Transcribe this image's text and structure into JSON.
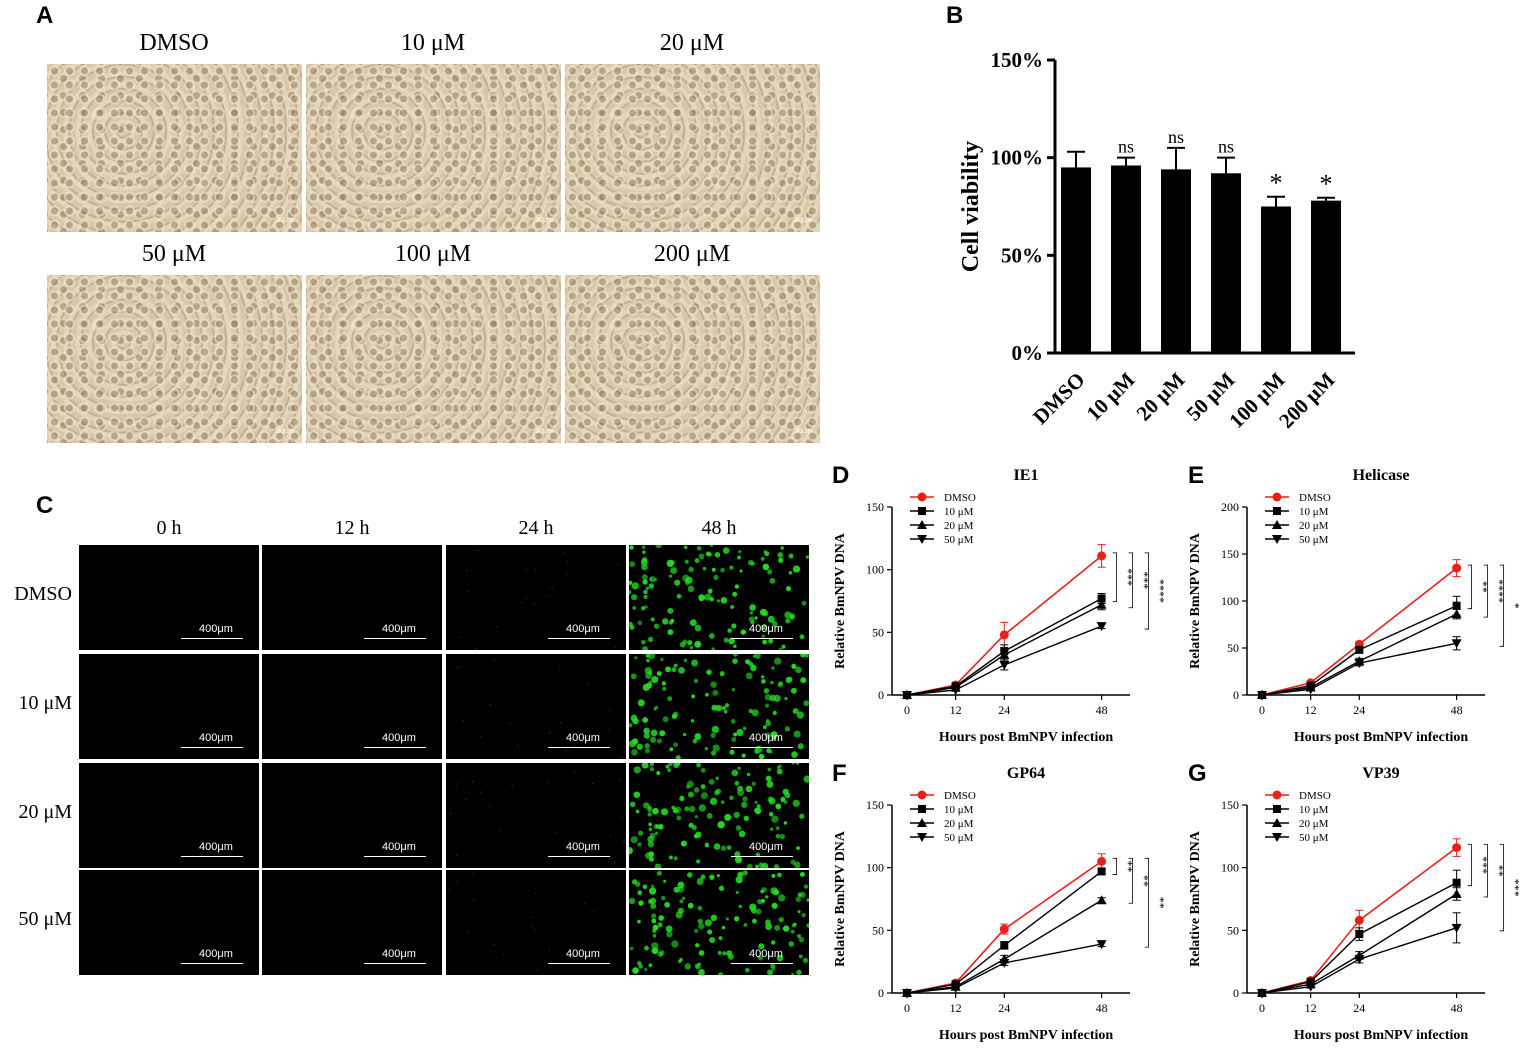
{
  "panel_A": {
    "letter": "A",
    "labels": [
      "DMSO",
      "10 μM",
      "20 μM",
      "50 μM",
      "100 μM",
      "200 μM"
    ],
    "scale_text": "30μm"
  },
  "panel_C": {
    "letter": "C",
    "time_labels": [
      "0 h",
      "12 h",
      "24 h",
      "48 h"
    ],
    "row_labels": [
      "DMSO",
      "10 μM",
      "20 μM",
      "50 μM"
    ],
    "scale_text": "400μm",
    "fluorescence_color": "#22dd22"
  },
  "colors": {
    "dmso_red": "#e8201a",
    "black": "#000000"
  },
  "chart_data": [
    {
      "panel": "B",
      "type": "bar",
      "ylabel": "Cell viability",
      "categories": [
        "DMSO",
        "10 μM",
        "20 μM",
        "50 μM",
        "100 μM",
        "200 μM"
      ],
      "values": [
        95,
        96,
        94,
        92,
        75,
        78
      ],
      "errors": [
        8,
        4,
        11,
        8,
        5,
        1.5
      ],
      "significance": [
        "",
        "ns",
        "ns",
        "ns",
        "*",
        "*"
      ],
      "yticks": [
        "0%",
        "50%",
        "100%",
        "150%"
      ],
      "ylim": [
        0,
        150
      ]
    },
    {
      "panel": "D",
      "type": "line",
      "title": "IE1",
      "xlabel": "Hours post BmNPV infection",
      "ylabel": "Relative BmNPV DNA",
      "x": [
        0,
        12,
        24,
        48
      ],
      "xticks": [
        "0",
        "12",
        "24",
        "48"
      ],
      "yticks": [
        "0",
        "50",
        "100",
        "150"
      ],
      "ylim": [
        0,
        150
      ],
      "series": [
        {
          "name": "DMSO",
          "values": [
            0,
            8,
            48,
            111
          ],
          "errors": [
            0,
            1,
            10,
            9
          ]
        },
        {
          "name": "10 μM",
          "values": [
            0,
            7,
            35,
            77
          ],
          "errors": [
            0,
            1,
            5,
            4
          ]
        },
        {
          "name": "20 μM",
          "values": [
            0,
            6,
            32,
            72
          ],
          "errors": [
            0,
            1,
            4,
            4
          ]
        },
        {
          "name": "50 μM",
          "values": [
            0,
            4,
            24,
            55
          ],
          "errors": [
            0,
            1,
            4,
            2
          ]
        }
      ],
      "brackets": [
        {
          "text": "***",
          "from": 111,
          "to": 77
        },
        {
          "text": "***",
          "from": 111,
          "to": 72
        },
        {
          "text": "****",
          "from": 111,
          "to": 55
        }
      ]
    },
    {
      "panel": "E",
      "type": "line",
      "title": "Helicase",
      "xlabel": "Hours post BmNPV infection",
      "ylabel": "Relative BmNPV DNA",
      "x": [
        0,
        12,
        24,
        48
      ],
      "xticks": [
        "0",
        "12",
        "24",
        "48"
      ],
      "yticks": [
        "0",
        "50",
        "100",
        "150",
        "200"
      ],
      "ylim": [
        0,
        200
      ],
      "series": [
        {
          "name": "DMSO",
          "values": [
            0,
            13,
            54,
            135
          ],
          "errors": [
            0,
            1,
            3,
            9
          ]
        },
        {
          "name": "10 μM",
          "values": [
            0,
            10,
            48,
            95
          ],
          "errors": [
            0,
            1,
            3,
            10
          ]
        },
        {
          "name": "20 μM",
          "values": [
            0,
            8,
            36,
            86
          ],
          "errors": [
            0,
            1,
            3,
            5
          ]
        },
        {
          "name": "50 μM",
          "values": [
            0,
            6,
            34,
            55
          ],
          "errors": [
            0,
            1,
            3,
            7
          ]
        }
      ],
      "brackets": [
        {
          "text": "**",
          "from": 135,
          "to": 95
        },
        {
          "text": "****",
          "from": 135,
          "to": 86
        },
        {
          "text": "*",
          "from": 135,
          "to": 55
        }
      ]
    },
    {
      "panel": "F",
      "type": "line",
      "title": "GP64",
      "xlabel": "Hours post BmNPV infection",
      "ylabel": "Relative BmNPV DNA",
      "x": [
        0,
        12,
        24,
        48
      ],
      "xticks": [
        "0",
        "12",
        "24",
        "48"
      ],
      "yticks": [
        "0",
        "50",
        "100",
        "150"
      ],
      "ylim": [
        0,
        150
      ],
      "series": [
        {
          "name": "DMSO",
          "values": [
            0,
            8,
            51,
            105
          ],
          "errors": [
            0,
            1,
            4,
            6
          ]
        },
        {
          "name": "10 μM",
          "values": [
            0,
            7,
            38,
            97
          ],
          "errors": [
            0,
            1,
            3,
            2
          ]
        },
        {
          "name": "20 μM",
          "values": [
            0,
            5,
            27,
            74
          ],
          "errors": [
            0,
            1,
            3,
            2
          ]
        },
        {
          "name": "50 μM",
          "values": [
            0,
            4,
            24,
            39
          ],
          "errors": [
            0,
            1,
            2,
            2
          ]
        }
      ],
      "brackets": [
        {
          "text": "**",
          "from": 105,
          "to": 97
        },
        {
          "text": "**",
          "from": 105,
          "to": 74
        },
        {
          "text": "**",
          "from": 105,
          "to": 39
        }
      ]
    },
    {
      "panel": "G",
      "type": "line",
      "title": "VP39",
      "xlabel": "Hours post BmNPV infection",
      "ylabel": "Relative BmNPV DNA",
      "x": [
        0,
        12,
        24,
        48
      ],
      "xticks": [
        "0",
        "12",
        "24",
        "48"
      ],
      "yticks": [
        "0",
        "50",
        "100",
        "150"
      ],
      "ylim": [
        0,
        150
      ],
      "series": [
        {
          "name": "DMSO",
          "values": [
            0,
            10,
            58,
            116
          ],
          "errors": [
            0,
            1,
            8,
            7
          ]
        },
        {
          "name": "10 μM",
          "values": [
            0,
            9,
            47,
            88
          ],
          "errors": [
            0,
            1,
            5,
            10
          ]
        },
        {
          "name": "20 μM",
          "values": [
            0,
            7,
            30,
            79
          ],
          "errors": [
            0,
            1,
            3,
            5
          ]
        },
        {
          "name": "50 μM",
          "values": [
            0,
            5,
            27,
            52
          ],
          "errors": [
            0,
            1,
            3,
            12
          ]
        }
      ],
      "brackets": [
        {
          "text": "***",
          "from": 116,
          "to": 88
        },
        {
          "text": "**",
          "from": 116,
          "to": 79
        },
        {
          "text": "***",
          "from": 116,
          "to": 52
        }
      ]
    }
  ]
}
